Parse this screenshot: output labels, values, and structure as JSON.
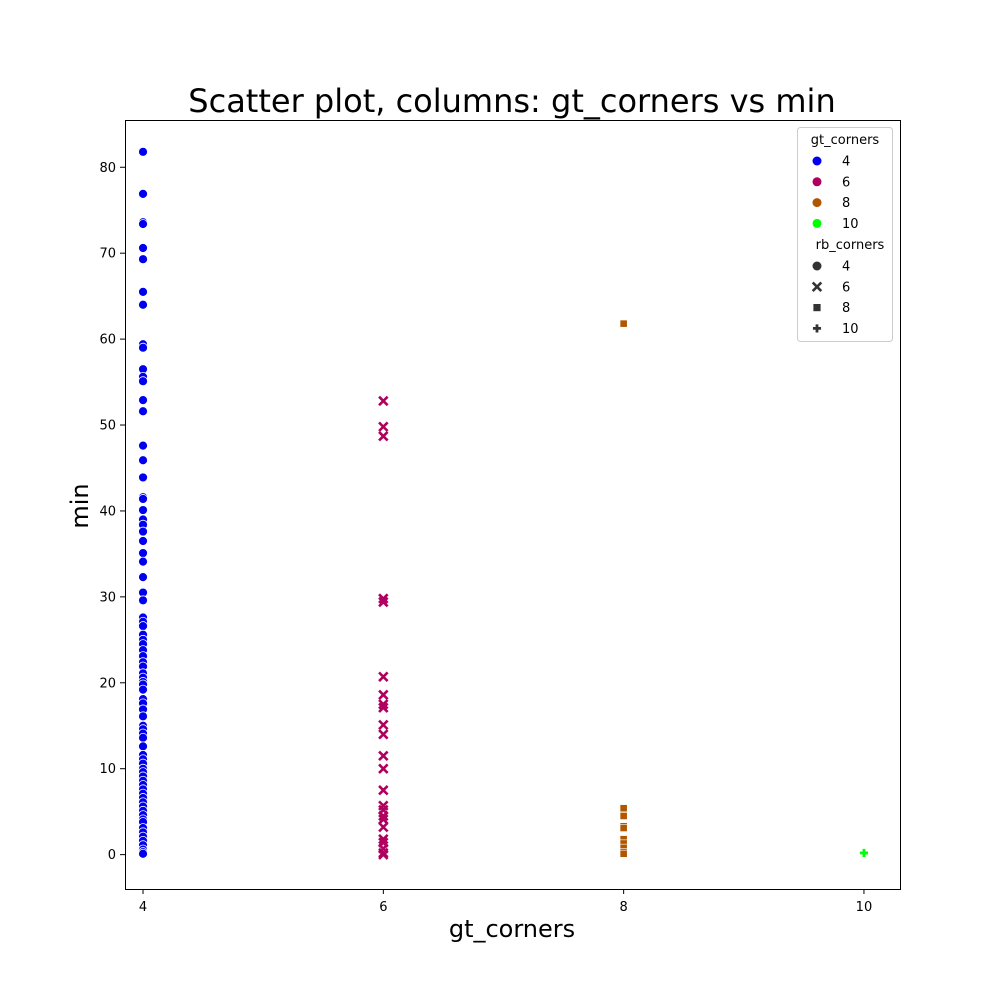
{
  "chart_data": {
    "type": "scatter",
    "title": "Scatter plot, columns: gt_corners vs min",
    "xlabel": "gt_corners",
    "ylabel": "min",
    "xlim": [
      3.85,
      10.3
    ],
    "ylim": [
      -4,
      85.5
    ],
    "xticks": [
      "4",
      "6",
      "8",
      "10"
    ],
    "yticks": [
      "0",
      "10",
      "20",
      "30",
      "40",
      "50",
      "60",
      "70",
      "80"
    ],
    "grid": false,
    "legend": {
      "placement": "top-right",
      "hue_title": "gt_corners",
      "hue_entries": [
        {
          "label": "4",
          "color": "#0000ee"
        },
        {
          "label": "6",
          "color": "#b0005f"
        },
        {
          "label": "8",
          "color": "#b05500"
        },
        {
          "label": "10",
          "color": "#00ff00"
        }
      ],
      "style_title": "rb_corners",
      "style_entries": [
        {
          "label": "4",
          "marker": "circle"
        },
        {
          "label": "6",
          "marker": "x"
        },
        {
          "label": "8",
          "marker": "square"
        },
        {
          "label": "10",
          "marker": "plus"
        }
      ]
    },
    "series": [
      {
        "gt_corners": 4,
        "rb_corners": 4,
        "marker": "circle",
        "color": "#0000ee",
        "x": 4,
        "values": [
          81.8,
          76.9,
          73.6,
          73.4,
          70.6,
          69.3,
          65.5,
          64.0,
          59.4,
          59.0,
          56.5,
          55.6,
          55.1,
          52.9,
          51.6,
          47.6,
          45.9,
          43.9,
          41.6,
          41.4,
          40.1,
          39.0,
          38.4,
          37.6,
          36.5,
          35.1,
          34.1,
          32.3,
          30.5,
          29.6,
          27.6,
          27.1,
          26.6,
          25.6,
          25.0,
          24.5,
          23.8,
          23.1,
          22.4,
          21.9,
          21.1,
          20.6,
          20.1,
          19.8,
          19.2,
          18.1,
          17.6,
          16.9,
          16.1,
          15.0,
          14.6,
          14.1,
          13.6,
          12.6,
          11.6,
          11.1,
          10.6,
          10.0,
          9.6,
          9.1,
          8.6,
          8.1,
          7.6,
          7.1,
          6.6,
          6.1,
          5.6,
          5.1,
          4.6,
          4.1,
          3.8,
          3.1,
          2.6,
          2.1,
          1.6,
          1.1,
          0.6,
          0.3,
          0.1
        ]
      },
      {
        "gt_corners": 6,
        "rb_corners": 6,
        "marker": "x",
        "color": "#b0005f",
        "x": 6,
        "values": [
          52.8,
          49.8,
          48.7,
          29.8,
          29.4,
          20.7,
          18.6,
          17.5,
          17.1,
          15.1,
          14.0,
          11.5,
          10.0,
          7.5,
          5.7,
          5.2,
          4.5,
          4.1,
          3.2,
          1.8,
          1.4,
          0.7,
          0.2,
          0.0
        ]
      },
      {
        "gt_corners": 8,
        "rb_corners": 8,
        "marker": "square",
        "color": "#b05500",
        "x": 8,
        "values": [
          61.8,
          5.4,
          4.5,
          3.3,
          3.1,
          1.8,
          1.3,
          0.8,
          0.3,
          0.1
        ]
      },
      {
        "gt_corners": 10,
        "rb_corners": 10,
        "marker": "plus",
        "color": "#00ff00",
        "x": 10,
        "values": [
          0.2
        ]
      }
    ]
  }
}
